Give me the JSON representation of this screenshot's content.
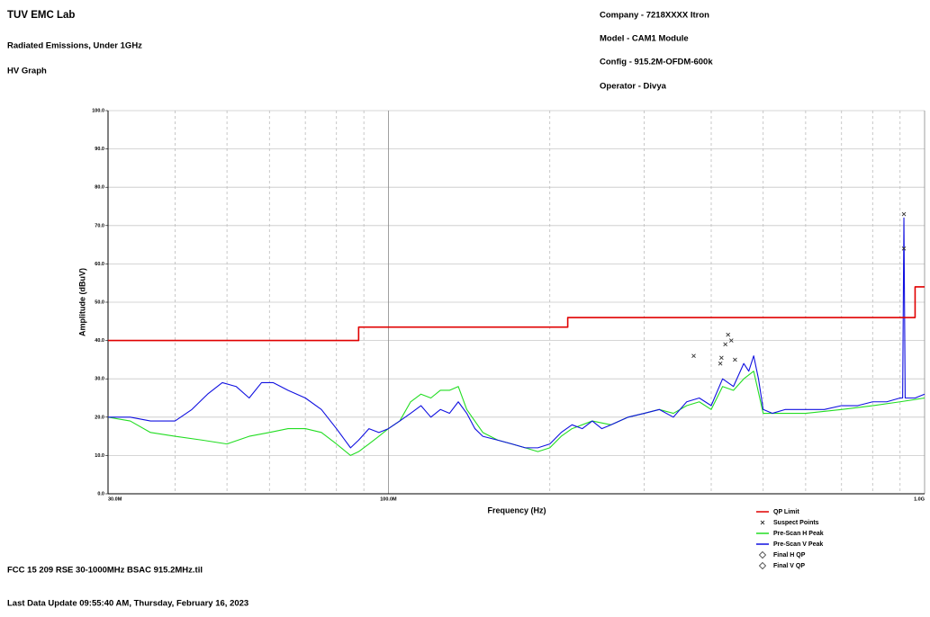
{
  "header": {
    "title": "TUV EMC Lab",
    "subtitle": "Radiated Emissions, Under 1GHz",
    "graph": "HV Graph",
    "company": "Company - 7218XXXX Itron",
    "model": "Model - CAM1 Module",
    "config": "Config - 915.2M-OFDM-600k",
    "operator": "Operator - Divya"
  },
  "footer": {
    "file": "FCC 15 209 RSE 30-1000MHz BSAC 915.2MHz.til",
    "updated": "Last Data Update 09:55:40 AM, Thursday, February 16, 2023"
  },
  "chart_data": {
    "type": "line",
    "xlabel": "Frequency (Hz)",
    "ylabel": "Amplitude (dBuV)",
    "xscale": "log",
    "xlim": [
      30000000.0,
      1000000000.0
    ],
    "xticks": [
      {
        "value": 30000000.0,
        "label": "30.0M"
      },
      {
        "value": 100000000.0,
        "label": "100.0M"
      },
      {
        "value": 1000000000.0,
        "label": "1.0G"
      }
    ],
    "xminor": [
      40000000.0,
      50000000.0,
      60000000.0,
      70000000.0,
      80000000.0,
      90000000.0,
      200000000.0,
      300000000.0,
      400000000.0,
      500000000.0,
      600000000.0,
      700000000.0,
      800000000.0,
      900000000.0
    ],
    "ylim": [
      0,
      100
    ],
    "yticks": [
      {
        "value": 0,
        "label": "0.0"
      },
      {
        "value": 10,
        "label": "10.0"
      },
      {
        "value": 20,
        "label": "20.0"
      },
      {
        "value": 30,
        "label": "30.0"
      },
      {
        "value": 40,
        "label": "40.0"
      },
      {
        "value": 50,
        "label": "50.0"
      },
      {
        "value": 60,
        "label": "60.0"
      },
      {
        "value": 70,
        "label": "70.0"
      },
      {
        "value": 80,
        "label": "80.0"
      },
      {
        "value": 90,
        "label": "90.0"
      },
      {
        "value": 100,
        "label": "100.0"
      }
    ],
    "grid": true,
    "legend": "bottom-right",
    "series": [
      {
        "name": "QP Limit",
        "color": "#e00000",
        "style": "line",
        "x": [
          30000000.0,
          88000000.0,
          88000000.0,
          216000000.0,
          216000000.0,
          960000000.0,
          960000000.0,
          1000000000.0
        ],
        "values": [
          40,
          40,
          43.5,
          43.5,
          46,
          46,
          54,
          54
        ]
      },
      {
        "name": "Suspect Points",
        "color": "#333333",
        "style": "marker",
        "marker": "x",
        "x": [
          371000000.0,
          416000000.0,
          418000000.0,
          425000000.0,
          430000000.0,
          436000000.0,
          443000000.0,
          915000000.0,
          915000000.0
        ],
        "values": [
          36,
          34,
          35.5,
          39,
          41.5,
          40,
          35,
          73,
          64
        ]
      },
      {
        "name": "Pre-Scan H Peak",
        "color": "#22dd22",
        "style": "line",
        "x": [
          30000000.0,
          33000000.0,
          36000000.0,
          40000000.0,
          45000000.0,
          50000000.0,
          55000000.0,
          60000000.0,
          65000000.0,
          70000000.0,
          75000000.0,
          80000000.0,
          85000000.0,
          88000000.0,
          92000000.0,
          96000000.0,
          100000000.0,
          105000000.0,
          110000000.0,
          115000000.0,
          120000000.0,
          125000000.0,
          130000000.0,
          135000000.0,
          140000000.0,
          150000000.0,
          160000000.0,
          170000000.0,
          180000000.0,
          190000000.0,
          200000000.0,
          210000000.0,
          220000000.0,
          240000000.0,
          260000000.0,
          280000000.0,
          300000000.0,
          320000000.0,
          340000000.0,
          360000000.0,
          380000000.0,
          400000000.0,
          420000000.0,
          440000000.0,
          460000000.0,
          480000000.0,
          500000000.0,
          550000000.0,
          600000000.0,
          700000000.0,
          800000000.0,
          900000000.0,
          1000000000.0
        ],
        "values": [
          20,
          19,
          16,
          15,
          14,
          13,
          15,
          16,
          17,
          17,
          16,
          13,
          10,
          11,
          13,
          15,
          17,
          19,
          24,
          26,
          25,
          27,
          27,
          28,
          22,
          16,
          14,
          13,
          12,
          11,
          12,
          15,
          17,
          19,
          18,
          20,
          21,
          22,
          21,
          23,
          24,
          22,
          28,
          27,
          30,
          32,
          21,
          21,
          21,
          22,
          23,
          24,
          25
        ]
      },
      {
        "name": "Pre-Scan V Peak",
        "color": "#1010e0",
        "style": "line",
        "x": [
          30000000.0,
          33000000.0,
          36000000.0,
          40000000.0,
          43000000.0,
          46000000.0,
          49000000.0,
          52000000.0,
          55000000.0,
          58000000.0,
          61000000.0,
          65000000.0,
          70000000.0,
          75000000.0,
          80000000.0,
          85000000.0,
          88000000.0,
          92000000.0,
          96000000.0,
          100000000.0,
          105000000.0,
          110000000.0,
          115000000.0,
          120000000.0,
          125000000.0,
          130000000.0,
          135000000.0,
          140000000.0,
          145000000.0,
          150000000.0,
          160000000.0,
          170000000.0,
          180000000.0,
          190000000.0,
          200000000.0,
          210000000.0,
          220000000.0,
          230000000.0,
          240000000.0,
          250000000.0,
          260000000.0,
          280000000.0,
          300000000.0,
          320000000.0,
          340000000.0,
          360000000.0,
          380000000.0,
          400000000.0,
          420000000.0,
          440000000.0,
          460000000.0,
          470000000.0,
          480000000.0,
          490000000.0,
          500000000.0,
          520000000.0,
          550000000.0,
          600000000.0,
          650000000.0,
          700000000.0,
          750000000.0,
          800000000.0,
          850000000.0,
          900000000.0,
          910000000.0,
          915000000.0,
          920000000.0,
          960000000.0,
          1000000000.0
        ],
        "values": [
          20,
          20,
          19,
          19,
          22,
          26,
          29,
          28,
          25,
          29,
          29,
          27,
          25,
          22,
          17,
          12,
          14,
          17,
          16,
          17,
          19,
          21,
          23,
          20,
          22,
          21,
          24,
          21,
          17,
          15,
          14,
          13,
          12,
          12,
          13,
          16,
          18,
          17,
          19,
          17,
          18,
          20,
          21,
          22,
          20,
          24,
          25,
          23,
          30,
          28,
          34,
          32,
          36,
          30,
          22,
          21,
          22,
          22,
          22,
          23,
          23,
          24,
          24,
          25,
          25,
          72,
          25,
          25,
          26
        ]
      },
      {
        "name": "Final H QP",
        "color": "#333333",
        "style": "marker",
        "marker": "diamond",
        "x": [],
        "values": []
      },
      {
        "name": "Final V QP",
        "color": "#333333",
        "style": "marker",
        "marker": "diamond",
        "x": [],
        "values": []
      }
    ]
  }
}
